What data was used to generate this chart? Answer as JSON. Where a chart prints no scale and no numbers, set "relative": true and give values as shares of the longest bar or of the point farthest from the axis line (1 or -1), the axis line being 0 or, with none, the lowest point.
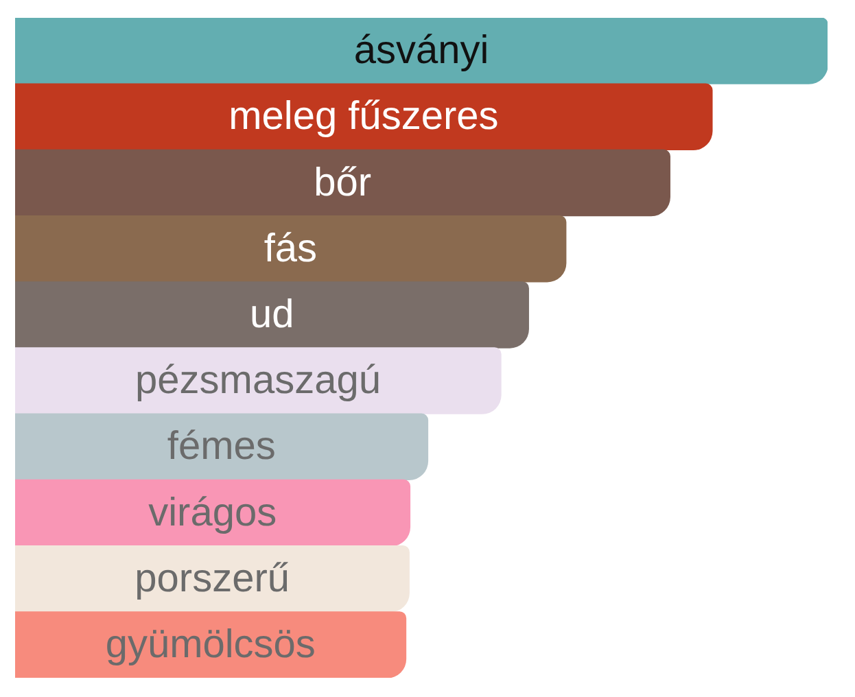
{
  "chart_data": {
    "type": "bar",
    "orientation": "horizontal",
    "relative": true,
    "categories": [
      "ásványi",
      "meleg fűszeres",
      "bőr",
      "fás",
      "ud",
      "pézsmaszagú",
      "fémes",
      "virágos",
      "porszerű",
      "gyümölcsös"
    ],
    "values": [
      1,
      0.858,
      0.806,
      0.678,
      0.632,
      0.598,
      0.508,
      0.486,
      0.485,
      0.481
    ],
    "colors": [
      "#63aeb1",
      "#c1391f",
      "#7a584d",
      "#8a6a4f",
      "#7a6e69",
      "#eadfee",
      "#b8c7cc",
      "#f996b5",
      "#f2e7dc",
      "#f78b7d"
    ]
  }
}
